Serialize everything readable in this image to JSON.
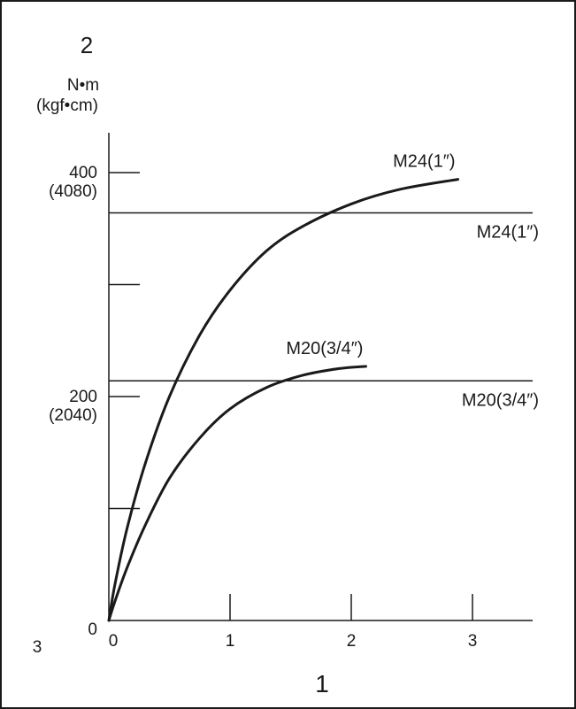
{
  "chart_data": {
    "type": "line",
    "corner_labels": {
      "y_axis_marker": "2",
      "x_axis_marker": "1",
      "origin_marker": "3"
    },
    "ylabel_lines": [
      "N•m",
      "(kgf•cm)"
    ],
    "xlim": [
      0,
      3.5
    ],
    "ylim": [
      0,
      450
    ],
    "x_ticks": [
      {
        "value": 0,
        "label": "0"
      },
      {
        "value": 1,
        "label": "1"
      },
      {
        "value": 2,
        "label": "2"
      },
      {
        "value": 3,
        "label": "3"
      }
    ],
    "y_ticks": [
      {
        "value": 0,
        "labels": [
          "0"
        ]
      },
      {
        "value": 100,
        "labels": []
      },
      {
        "value": 200,
        "labels": [
          "200",
          "(2040)"
        ]
      },
      {
        "value": 300,
        "labels": []
      },
      {
        "value": 400,
        "labels": [
          "400",
          "(4080)"
        ]
      }
    ],
    "series": [
      {
        "name": "M24(1″)",
        "x": [
          0,
          0.05,
          0.15,
          0.3,
          0.5,
          0.75,
          1.0,
          1.3,
          1.6,
          2.0,
          2.4,
          2.88
        ],
        "y": [
          0,
          32,
          82,
          140,
          200,
          255,
          295,
          330,
          352,
          372,
          385,
          394
        ]
      },
      {
        "name": "M20(3/4″)",
        "x": [
          0,
          0.05,
          0.15,
          0.3,
          0.5,
          0.75,
          1.0,
          1.3,
          1.6,
          1.9,
          2.12
        ],
        "y": [
          0,
          17,
          47,
          85,
          127,
          163,
          189,
          208,
          219,
          225,
          227
        ]
      }
    ],
    "reference_lines": [
      {
        "label": "M24(1″)",
        "y": 364
      },
      {
        "label": "M20(3/4″)",
        "y": 214
      }
    ]
  }
}
